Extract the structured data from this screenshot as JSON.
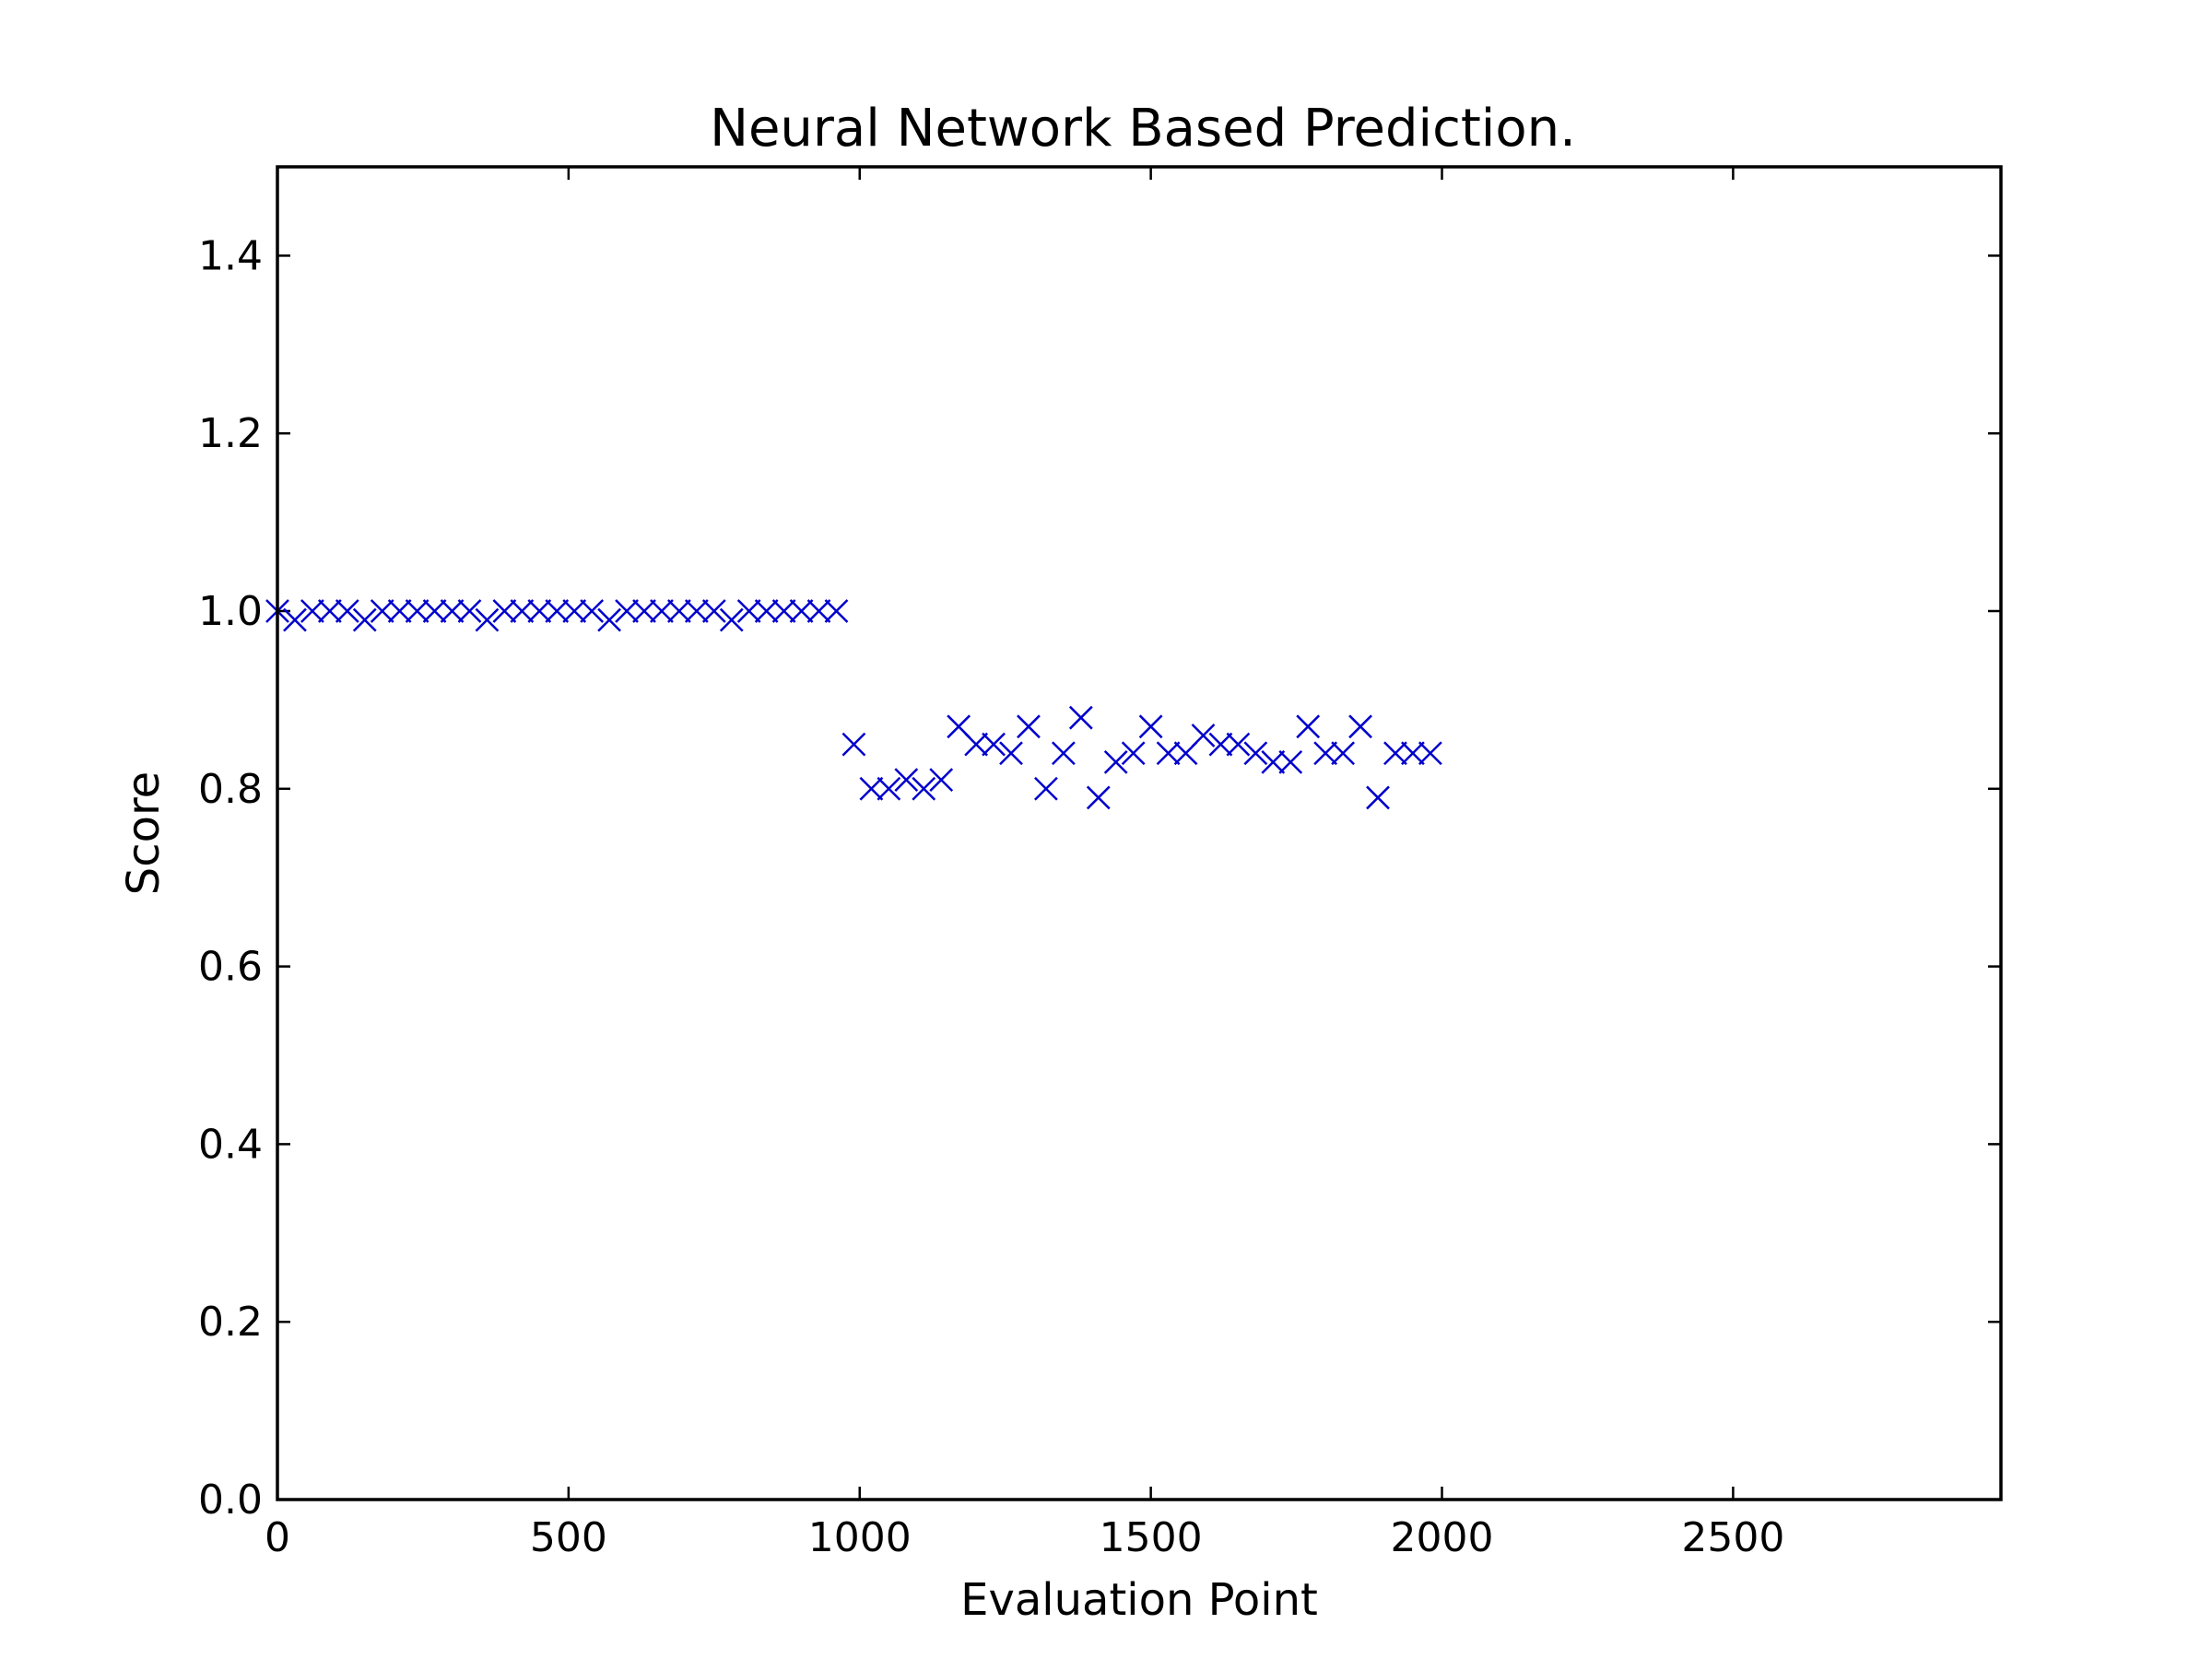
{
  "chart_data": {
    "type": "scatter",
    "title": "Neural Network Based Prediction.",
    "xlabel": "Evaluation Point",
    "ylabel": "Score",
    "xlim": [
      0,
      2960
    ],
    "ylim": [
      0,
      1.5
    ],
    "x_ticks": [
      {
        "value": 0,
        "label": "0"
      },
      {
        "value": 500,
        "label": "500"
      },
      {
        "value": 1000,
        "label": "1000"
      },
      {
        "value": 1500,
        "label": "1500"
      },
      {
        "value": 2000,
        "label": "2000"
      },
      {
        "value": 2500,
        "label": "2500"
      }
    ],
    "y_ticks": [
      {
        "value": 0.0,
        "label": "0.0"
      },
      {
        "value": 0.2,
        "label": "0.2"
      },
      {
        "value": 0.4,
        "label": "0.4"
      },
      {
        "value": 0.6,
        "label": "0.6"
      },
      {
        "value": 0.8,
        "label": "0.8"
      },
      {
        "value": 1.0,
        "label": "1.0"
      },
      {
        "value": 1.2,
        "label": "1.2"
      },
      {
        "value": 1.4,
        "label": "1.4"
      }
    ],
    "grid": false,
    "marker": "x",
    "color": "#0000cc",
    "series": [
      {
        "x": [
          0,
          30,
          60,
          90,
          120,
          150,
          180,
          210,
          240,
          270,
          300,
          330,
          360,
          390,
          420,
          450,
          480,
          510,
          540,
          570,
          600,
          630,
          660,
          690,
          720,
          750,
          780,
          810,
          840,
          870,
          900,
          930,
          960,
          990,
          1020,
          1050,
          1080,
          1110,
          1140,
          1170,
          1200,
          1230,
          1260,
          1290,
          1320,
          1350,
          1380,
          1410,
          1440,
          1470,
          1500,
          1530,
          1560,
          1590,
          1620,
          1650,
          1680,
          1710,
          1740,
          1770,
          1800,
          1830,
          1860,
          1890,
          1920,
          1950,
          1980
        ],
        "y": [
          1.0,
          0.99,
          1.0,
          1.0,
          1.0,
          0.99,
          1.0,
          1.0,
          1.0,
          1.0,
          1.0,
          1.0,
          0.99,
          1.0,
          1.0,
          1.0,
          1.0,
          1.0,
          1.0,
          0.99,
          1.0,
          1.0,
          1.0,
          1.0,
          1.0,
          1.0,
          0.99,
          1.0,
          1.0,
          1.0,
          1.0,
          1.0,
          1.0,
          0.85,
          0.8,
          0.8,
          0.81,
          0.8,
          0.81,
          0.87,
          0.85,
          0.85,
          0.84,
          0.87,
          0.8,
          0.84,
          0.88,
          0.79,
          0.83,
          0.84,
          0.87,
          0.84,
          0.84,
          0.86,
          0.85,
          0.85,
          0.84,
          0.83,
          0.83,
          0.87,
          0.84,
          0.84,
          0.87,
          0.79,
          0.84,
          0.84,
          0.84
        ]
      }
    ]
  }
}
